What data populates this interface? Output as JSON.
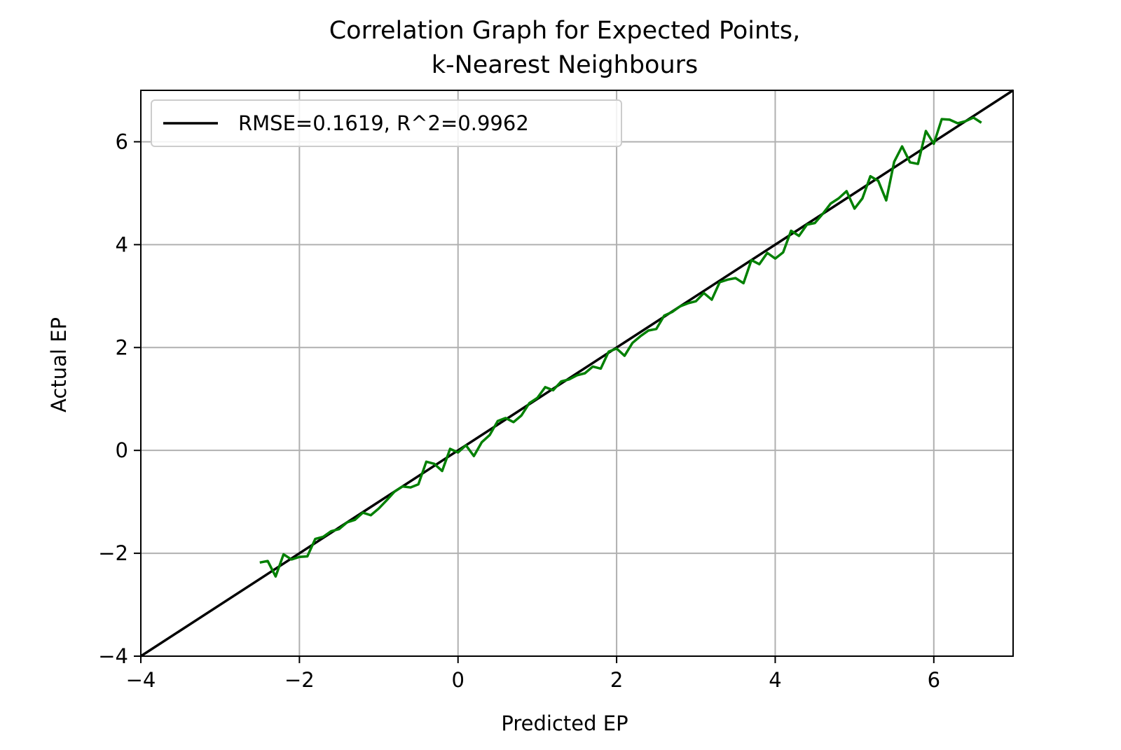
{
  "chart_data": {
    "type": "line",
    "title": "Correlation Graph for Expected Points,",
    "subtitle": "k-Nearest Neighbours",
    "xlabel": "Predicted EP",
    "ylabel": "Actual EP",
    "xlim": [
      -4,
      7
    ],
    "ylim": [
      -4,
      7
    ],
    "xticks": [
      -4,
      -2,
      0,
      2,
      4,
      6
    ],
    "yticks": [
      -4,
      -2,
      0,
      2,
      4,
      6
    ],
    "xtick_labels": [
      "−4",
      "−2",
      "0",
      "2",
      "4",
      "6"
    ],
    "ytick_labels": [
      "−4",
      "−2",
      "0",
      "2",
      "4",
      "6"
    ],
    "grid": true,
    "legend_position": "upper-left",
    "series": [
      {
        "name": "RMSE=0.1619, R^2=0.9962",
        "color": "#000000",
        "x": [
          -4,
          7
        ],
        "y": [
          -4,
          7
        ]
      },
      {
        "color": "#008000",
        "x": [
          -2.5,
          -2.4,
          -2.3,
          -2.2,
          -2.1,
          -2.0,
          -1.9,
          -1.8,
          -1.7,
          -1.6,
          -1.5,
          -1.4,
          -1.3,
          -1.2,
          -1.1,
          -1.0,
          -0.9,
          -0.8,
          -0.7,
          -0.6,
          -0.5,
          -0.4,
          -0.3,
          -0.2,
          -0.1,
          0.0,
          0.1,
          0.2,
          0.3,
          0.4,
          0.5,
          0.6,
          0.7,
          0.8,
          0.9,
          1.0,
          1.1,
          1.2,
          1.3,
          1.4,
          1.5,
          1.6,
          1.7,
          1.8,
          1.9,
          2.0,
          2.1,
          2.2,
          2.3,
          2.4,
          2.5,
          2.6,
          2.7,
          2.8,
          2.9,
          3.0,
          3.1,
          3.2,
          3.3,
          3.4,
          3.5,
          3.6,
          3.7,
          3.8,
          3.9,
          4.0,
          4.1,
          4.2,
          4.3,
          4.4,
          4.5,
          4.6,
          4.7,
          4.8,
          4.9,
          5.0,
          5.1,
          5.2,
          5.3,
          5.4,
          5.5,
          5.6,
          5.7,
          5.8,
          5.9,
          6.0,
          6.1,
          6.2,
          6.3,
          6.4,
          6.5,
          6.6
        ],
        "y": [
          -2.18,
          -2.15,
          -2.45,
          -2.02,
          -2.12,
          -2.07,
          -2.06,
          -1.72,
          -1.68,
          -1.57,
          -1.53,
          -1.4,
          -1.35,
          -1.21,
          -1.26,
          -1.13,
          -0.97,
          -0.8,
          -0.7,
          -0.72,
          -0.66,
          -0.22,
          -0.26,
          -0.4,
          0.03,
          -0.04,
          0.1,
          -0.11,
          0.16,
          0.3,
          0.57,
          0.63,
          0.55,
          0.68,
          0.92,
          1.02,
          1.23,
          1.17,
          1.34,
          1.38,
          1.46,
          1.5,
          1.63,
          1.59,
          1.92,
          1.98,
          1.84,
          2.09,
          2.22,
          2.33,
          2.36,
          2.62,
          2.69,
          2.8,
          2.86,
          2.9,
          3.06,
          2.93,
          3.27,
          3.32,
          3.35,
          3.25,
          3.7,
          3.62,
          3.84,
          3.73,
          3.85,
          4.27,
          4.17,
          4.39,
          4.42,
          4.6,
          4.8,
          4.9,
          5.04,
          4.7,
          4.9,
          5.33,
          5.24,
          4.86,
          5.61,
          5.91,
          5.6,
          5.57,
          6.21,
          5.96,
          6.44,
          6.43,
          6.36,
          6.4,
          6.47,
          6.37
        ]
      }
    ]
  }
}
